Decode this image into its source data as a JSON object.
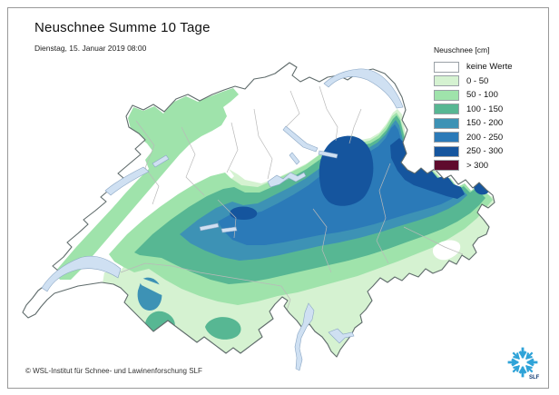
{
  "header": {
    "title": "Neuschnee Summe 10 Tage",
    "date": "Dienstag, 15. Januar 2019 08:00"
  },
  "legend": {
    "title": "Neuschnee [cm]",
    "entries": [
      {
        "label": "keine Werte",
        "color": "#ffffff"
      },
      {
        "label": "0 - 50",
        "color": "#d5f2d1"
      },
      {
        "label": "50 - 100",
        "color": "#9fe3ab"
      },
      {
        "label": "100 - 150",
        "color": "#57b793"
      },
      {
        "label": "150 - 200",
        "color": "#3d92b5"
      },
      {
        "label": "200 - 250",
        "color": "#2b7ab8"
      },
      {
        "label": "250 - 300",
        "color": "#15559e"
      },
      {
        "label": "> 300",
        "color": "#5f0b2d"
      }
    ]
  },
  "footer": {
    "copyright": "© WSL-Institut für Schnee- und Lawinenforschung SLF"
  },
  "logo": {
    "text": "SLF",
    "color": "#2fa3d8",
    "text_color": "#123d75"
  },
  "map": {
    "lake_color": "#cfe0f2",
    "lake_stroke": "#8aa6c4",
    "border_color": "#5f6b6b",
    "canton_border_color": "#b9b9b9"
  }
}
